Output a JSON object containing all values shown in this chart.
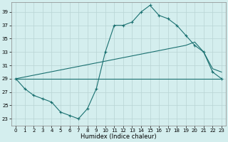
{
  "xlabel": "Humidex (Indice chaleur)",
  "background_color": "#d4eeee",
  "grid_color": "#b8d4d4",
  "line_color": "#1a7070",
  "xlim": [
    -0.5,
    23.5
  ],
  "ylim": [
    22.0,
    40.5
  ],
  "yticks": [
    23,
    25,
    27,
    29,
    31,
    33,
    35,
    37,
    39
  ],
  "xticks": [
    0,
    1,
    2,
    3,
    4,
    5,
    6,
    7,
    8,
    9,
    10,
    11,
    12,
    13,
    14,
    15,
    16,
    17,
    18,
    19,
    20,
    21,
    22,
    23
  ],
  "line1_x": [
    0,
    1,
    2,
    3,
    4,
    5,
    6,
    7,
    8,
    9,
    10,
    11,
    12,
    13,
    14,
    15,
    16,
    17,
    18,
    19,
    20,
    21,
    22,
    23
  ],
  "line1_y": [
    29.0,
    27.5,
    26.5,
    26.0,
    25.5,
    24.0,
    23.5,
    23.0,
    24.5,
    27.5,
    33.0,
    37.0,
    37.0,
    37.5,
    39.0,
    40.0,
    38.5,
    38.0,
    37.0,
    35.5,
    34.0,
    33.0,
    30.0,
    29.0
  ],
  "line2_x": [
    0,
    23
  ],
  "line2_y": [
    29.0,
    29.0
  ],
  "line3_x": [
    0,
    19,
    20,
    21,
    22,
    23
  ],
  "line3_y": [
    29.0,
    34.0,
    34.5,
    33.0,
    30.5,
    30.0
  ]
}
